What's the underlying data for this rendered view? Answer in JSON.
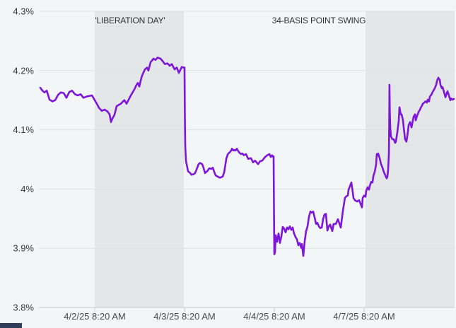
{
  "page": {
    "background": "#f3f6f7"
  },
  "bottom_bar": {
    "color": "#2e3d59"
  },
  "chart_data": {
    "type": "line",
    "title": "",
    "xlabel": "",
    "ylabel": "",
    "grid": true,
    "ylim": [
      3.8,
      4.3
    ],
    "xlim": [
      -0.62,
      4.01
    ],
    "x_unit": "labeled ticks are 1 unit apart (t=0 at 4/2/25 8:20 AM)",
    "background_color": "#f3f6f7",
    "band_color": "#e4e7e8",
    "gridline_color": "#dfe2e4",
    "axis_color": "#c7cbce",
    "y_ticks": [
      {
        "value": 4.3,
        "label": "4.3%"
      },
      {
        "value": 4.2,
        "label": "4.2%"
      },
      {
        "value": 4.1,
        "label": "4.1%"
      },
      {
        "value": 4.0,
        "label": "4%"
      },
      {
        "value": 3.9,
        "label": "3.9%"
      },
      {
        "value": 3.8,
        "label": "3.8%"
      }
    ],
    "x_ticks": [
      {
        "t": 0,
        "label": "4/2/25 8:20 AM"
      },
      {
        "t": 1,
        "label": "4/3/25 8:20 AM"
      },
      {
        "t": 2,
        "label": "4/4/25 8:20 AM"
      },
      {
        "t": 3,
        "label": "4/7/25 8:20 AM"
      }
    ],
    "shaded_bands": [
      {
        "t0": 0.0,
        "t1": 0.992
      },
      {
        "t0": 3.016,
        "t1": 4.008
      }
    ],
    "annotations": [
      {
        "text": "'LIBERATION DAY'",
        "t": 0.394
      },
      {
        "text": "34-BASIS POINT SWING",
        "t": 2.496
      }
    ],
    "series": [
      {
        "color": "#7e16da",
        "points": [
          [
            -0.606,
            4.171
          ],
          [
            -0.583,
            4.166
          ],
          [
            -0.559,
            4.163
          ],
          [
            -0.535,
            4.166
          ],
          [
            -0.504,
            4.151
          ],
          [
            -0.472,
            4.148
          ],
          [
            -0.441,
            4.15
          ],
          [
            -0.409,
            4.159
          ],
          [
            -0.378,
            4.163
          ],
          [
            -0.346,
            4.162
          ],
          [
            -0.315,
            4.154
          ],
          [
            -0.283,
            4.164
          ],
          [
            -0.252,
            4.166
          ],
          [
            -0.22,
            4.16
          ],
          [
            -0.189,
            4.158
          ],
          [
            -0.157,
            4.16
          ],
          [
            -0.126,
            4.154
          ],
          [
            -0.094,
            4.156
          ],
          [
            -0.063,
            4.157
          ],
          [
            -0.031,
            4.158
          ],
          [
            0.0,
            4.15
          ],
          [
            0.031,
            4.142
          ],
          [
            0.047,
            4.137
          ],
          [
            0.079,
            4.132
          ],
          [
            0.11,
            4.134
          ],
          [
            0.142,
            4.131
          ],
          [
            0.165,
            4.126
          ],
          [
            0.181,
            4.113
          ],
          [
            0.197,
            4.119
          ],
          [
            0.22,
            4.125
          ],
          [
            0.244,
            4.14
          ],
          [
            0.268,
            4.142
          ],
          [
            0.291,
            4.144
          ],
          [
            0.315,
            4.148
          ],
          [
            0.331,
            4.15
          ],
          [
            0.354,
            4.144
          ],
          [
            0.378,
            4.151
          ],
          [
            0.402,
            4.158
          ],
          [
            0.425,
            4.164
          ],
          [
            0.441,
            4.168
          ],
          [
            0.465,
            4.176
          ],
          [
            0.48,
            4.179
          ],
          [
            0.496,
            4.173
          ],
          [
            0.52,
            4.188
          ],
          [
            0.535,
            4.194
          ],
          [
            0.559,
            4.202
          ],
          [
            0.583,
            4.205
          ],
          [
            0.598,
            4.2
          ],
          [
            0.622,
            4.214
          ],
          [
            0.654,
            4.22
          ],
          [
            0.677,
            4.218
          ],
          [
            0.701,
            4.222
          ],
          [
            0.732,
            4.22
          ],
          [
            0.756,
            4.216
          ],
          [
            0.78,
            4.211
          ],
          [
            0.811,
            4.212
          ],
          [
            0.835,
            4.208
          ],
          [
            0.858,
            4.211
          ],
          [
            0.89,
            4.202
          ],
          [
            0.913,
            4.205
          ],
          [
            0.937,
            4.196
          ],
          [
            0.969,
            4.206
          ],
          [
            0.992,
            4.205
          ],
          [
            1.0,
            4.205
          ],
          [
            1.004,
            4.12
          ],
          [
            1.008,
            4.074
          ],
          [
            1.016,
            4.048
          ],
          [
            1.039,
            4.03
          ],
          [
            1.063,
            4.027
          ],
          [
            1.079,
            4.024
          ],
          [
            1.102,
            4.025
          ],
          [
            1.118,
            4.027
          ],
          [
            1.142,
            4.036
          ],
          [
            1.157,
            4.042
          ],
          [
            1.173,
            4.044
          ],
          [
            1.197,
            4.042
          ],
          [
            1.213,
            4.035
          ],
          [
            1.228,
            4.027
          ],
          [
            1.252,
            4.03
          ],
          [
            1.276,
            4.035
          ],
          [
            1.299,
            4.034
          ],
          [
            1.315,
            4.036
          ],
          [
            1.331,
            4.029
          ],
          [
            1.346,
            4.023
          ],
          [
            1.37,
            4.021
          ],
          [
            1.394,
            4.019
          ],
          [
            1.409,
            4.02
          ],
          [
            1.425,
            4.021
          ],
          [
            1.441,
            4.028
          ],
          [
            1.449,
            4.035
          ],
          [
            1.465,
            4.051
          ],
          [
            1.48,
            4.058
          ],
          [
            1.488,
            4.06
          ],
          [
            1.504,
            4.062
          ],
          [
            1.52,
            4.065
          ],
          [
            1.528,
            4.068
          ],
          [
            1.543,
            4.065
          ],
          [
            1.551,
            4.066
          ],
          [
            1.567,
            4.065
          ],
          [
            1.583,
            4.068
          ],
          [
            1.606,
            4.062
          ],
          [
            1.63,
            4.059
          ],
          [
            1.646,
            4.06
          ],
          [
            1.661,
            4.057
          ],
          [
            1.685,
            4.059
          ],
          [
            1.709,
            4.051
          ],
          [
            1.74,
            4.052
          ],
          [
            1.764,
            4.045
          ],
          [
            1.787,
            4.048
          ],
          [
            1.819,
            4.042
          ],
          [
            1.843,
            4.047
          ],
          [
            1.866,
            4.048
          ],
          [
            1.898,
            4.054
          ],
          [
            1.921,
            4.057
          ],
          [
            1.945,
            4.059
          ],
          [
            1.961,
            4.054
          ],
          [
            1.976,
            4.057
          ],
          [
            1.984,
            4.055
          ],
          [
            1.992,
            4.055
          ],
          [
            1.996,
            3.97
          ],
          [
            2.0,
            3.89
          ],
          [
            2.008,
            3.893
          ],
          [
            2.016,
            3.922
          ],
          [
            2.031,
            3.911
          ],
          [
            2.047,
            3.925
          ],
          [
            2.063,
            3.909
          ],
          [
            2.079,
            3.92
          ],
          [
            2.094,
            3.936
          ],
          [
            2.11,
            3.933
          ],
          [
            2.126,
            3.927
          ],
          [
            2.142,
            3.935
          ],
          [
            2.157,
            3.932
          ],
          [
            2.173,
            3.937
          ],
          [
            2.189,
            3.931
          ],
          [
            2.205,
            3.935
          ],
          [
            2.22,
            3.925
          ],
          [
            2.236,
            3.919
          ],
          [
            2.252,
            3.915
          ],
          [
            2.268,
            3.905
          ],
          [
            2.283,
            3.909
          ],
          [
            2.299,
            3.901
          ],
          [
            2.307,
            3.907
          ],
          [
            2.315,
            3.897
          ],
          [
            2.323,
            3.887
          ],
          [
            2.339,
            3.913
          ],
          [
            2.354,
            3.929
          ],
          [
            2.37,
            3.937
          ],
          [
            2.386,
            3.953
          ],
          [
            2.402,
            3.962
          ],
          [
            2.417,
            3.96
          ],
          [
            2.433,
            3.962
          ],
          [
            2.449,
            3.952
          ],
          [
            2.465,
            3.941
          ],
          [
            2.48,
            3.943
          ],
          [
            2.496,
            3.937
          ],
          [
            2.512,
            3.934
          ],
          [
            2.528,
            3.935
          ],
          [
            2.543,
            3.949
          ],
          [
            2.559,
            3.957
          ],
          [
            2.575,
            3.958
          ],
          [
            2.591,
            3.93
          ],
          [
            2.606,
            3.937
          ],
          [
            2.622,
            3.94
          ],
          [
            2.646,
            3.929
          ],
          [
            2.661,
            3.941
          ],
          [
            2.685,
            3.941
          ],
          [
            2.709,
            3.949
          ],
          [
            2.74,
            3.935
          ],
          [
            2.764,
            3.963
          ],
          [
            2.787,
            3.985
          ],
          [
            2.803,
            3.988
          ],
          [
            2.819,
            3.989
          ],
          [
            2.827,
            3.999
          ],
          [
            2.843,
            4.005
          ],
          [
            2.858,
            4.011
          ],
          [
            2.866,
            4.003
          ],
          [
            2.882,
            3.985
          ],
          [
            2.898,
            3.981
          ],
          [
            2.921,
            3.979
          ],
          [
            2.945,
            3.981
          ],
          [
            2.961,
            3.975
          ],
          [
            2.976,
            3.969
          ],
          [
            2.984,
            3.985
          ],
          [
            3.0,
            3.989
          ],
          [
            3.016,
            3.987
          ],
          [
            3.024,
            3.997
          ],
          [
            3.039,
            4.003
          ],
          [
            3.055,
            3.999
          ],
          [
            3.063,
            4.005
          ],
          [
            3.079,
            4.012
          ],
          [
            3.094,
            4.011
          ],
          [
            3.102,
            4.021
          ],
          [
            3.118,
            4.029
          ],
          [
            3.126,
            4.035
          ],
          [
            3.134,
            4.042
          ],
          [
            3.142,
            4.059
          ],
          [
            3.15,
            4.057
          ],
          [
            3.157,
            4.06
          ],
          [
            3.173,
            4.052
          ],
          [
            3.189,
            4.042
          ],
          [
            3.205,
            4.036
          ],
          [
            3.22,
            4.029
          ],
          [
            3.236,
            4.023
          ],
          [
            3.252,
            4.018
          ],
          [
            3.26,
            4.021
          ],
          [
            3.268,
            4.033
          ],
          [
            3.276,
            4.06
          ],
          [
            3.28,
            4.12
          ],
          [
            3.283,
            4.176
          ],
          [
            3.287,
            4.13
          ],
          [
            3.291,
            4.103
          ],
          [
            3.299,
            4.089
          ],
          [
            3.315,
            4.084
          ],
          [
            3.331,
            4.084
          ],
          [
            3.346,
            4.078
          ],
          [
            3.354,
            4.08
          ],
          [
            3.37,
            4.096
          ],
          [
            3.386,
            4.115
          ],
          [
            3.394,
            4.138
          ],
          [
            3.409,
            4.126
          ],
          [
            3.417,
            4.126
          ],
          [
            3.433,
            4.116
          ],
          [
            3.441,
            4.104
          ],
          [
            3.457,
            4.084
          ],
          [
            3.472,
            4.08
          ],
          [
            3.488,
            4.097
          ],
          [
            3.496,
            4.108
          ],
          [
            3.512,
            4.113
          ],
          [
            3.528,
            4.104
          ],
          [
            3.543,
            4.116
          ],
          [
            3.551,
            4.122
          ],
          [
            3.567,
            4.126
          ],
          [
            3.575,
            4.116
          ],
          [
            3.591,
            4.124
          ],
          [
            3.606,
            4.13
          ],
          [
            3.622,
            4.134
          ],
          [
            3.63,
            4.137
          ],
          [
            3.646,
            4.141
          ],
          [
            3.654,
            4.144
          ],
          [
            3.669,
            4.146
          ],
          [
            3.685,
            4.148
          ],
          [
            3.701,
            4.146
          ],
          [
            3.709,
            4.151
          ],
          [
            3.724,
            4.148
          ],
          [
            3.732,
            4.156
          ],
          [
            3.748,
            4.159
          ],
          [
            3.764,
            4.164
          ],
          [
            3.78,
            4.168
          ],
          [
            3.787,
            4.17
          ],
          [
            3.803,
            4.176
          ],
          [
            3.811,
            4.182
          ],
          [
            3.827,
            4.188
          ],
          [
            3.843,
            4.184
          ],
          [
            3.85,
            4.176
          ],
          [
            3.866,
            4.17
          ],
          [
            3.874,
            4.172
          ],
          [
            3.89,
            4.164
          ],
          [
            3.906,
            4.155
          ],
          [
            3.921,
            4.162
          ],
          [
            3.929,
            4.165
          ],
          [
            3.945,
            4.158
          ],
          [
            3.961,
            4.15
          ],
          [
            3.969,
            4.153
          ],
          [
            3.984,
            4.151
          ],
          [
            4.0,
            4.152
          ]
        ]
      }
    ]
  }
}
